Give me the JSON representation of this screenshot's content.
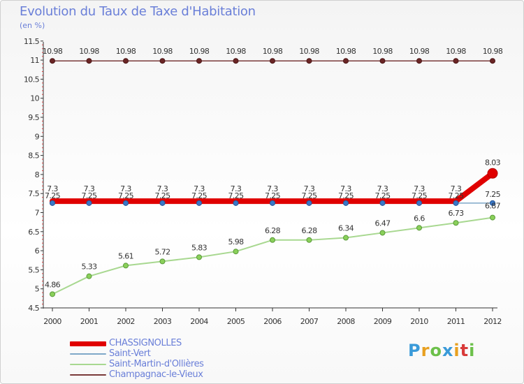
{
  "header": {
    "title": "Evolution du Taux de Taxe d'Habitation",
    "subtitle": "(en %)"
  },
  "logo": {
    "text": "Proxiti"
  },
  "chart_data": {
    "type": "line",
    "xlabel": "",
    "ylabel": "",
    "ylim": [
      4.5,
      11.5
    ],
    "grid": false,
    "legend_position": "bottom-left",
    "x": [
      "2000",
      "2001",
      "2002",
      "2003",
      "2004",
      "2005",
      "2006",
      "2007",
      "2008",
      "2009",
      "2010",
      "2011",
      "2012"
    ],
    "y_ticks": [
      "4.5",
      "5",
      "5.5",
      "6",
      "6.5",
      "7",
      "7.5",
      "8",
      "8.5",
      "9",
      "9.5",
      "10",
      "10.5",
      "11",
      "11.5"
    ],
    "series": [
      {
        "name": "Champagnac-le-Vieux",
        "color": "#7a3a3a",
        "values": [
          10.98,
          10.98,
          10.98,
          10.98,
          10.98,
          10.98,
          10.98,
          10.98,
          10.98,
          10.98,
          10.98,
          10.98,
          10.98
        ],
        "labels": [
          "10.98",
          "10.98",
          "10.98",
          "10.98",
          "10.98",
          "10.98",
          "10.98",
          "10.98",
          "10.98",
          "10.98",
          "10.98",
          "10.98",
          "10.98"
        ]
      },
      {
        "name": "Saint-Martin-d'Ollières",
        "color": "#a8d890",
        "values": [
          4.86,
          5.33,
          5.61,
          5.72,
          5.83,
          5.98,
          6.28,
          6.28,
          6.34,
          6.47,
          6.6,
          6.73,
          6.87
        ],
        "labels": [
          "4.86",
          "5.33",
          "5.61",
          "5.72",
          "5.83",
          "5.98",
          "6.28",
          "6.28",
          "6.34",
          "6.47",
          "6.6",
          "6.73",
          "6.87"
        ]
      },
      {
        "name": "Saint-Vert",
        "color": "#7fa8c8",
        "values": [
          7.25,
          7.25,
          7.25,
          7.25,
          7.25,
          7.25,
          7.25,
          7.25,
          7.25,
          7.25,
          7.25,
          7.25,
          7.25
        ],
        "labels": [
          "7.25",
          "7.25",
          "7.25",
          "7.25",
          "7.25",
          "7.25",
          "7.25",
          "7.25",
          "7.25",
          "7.25",
          "7.25",
          "7.25",
          "7.25"
        ]
      },
      {
        "name": "CHASSIGNOLLES",
        "color": "#e00000",
        "values": [
          7.3,
          7.3,
          7.3,
          7.3,
          7.3,
          7.3,
          7.3,
          7.3,
          7.3,
          7.3,
          7.3,
          7.3,
          8.03
        ],
        "labels": [
          "7.3",
          "7.3",
          "7.3",
          "7.3",
          "7.3",
          "7.3",
          "7.3",
          "7.3",
          "7.3",
          "7.3",
          "7.3",
          "7.3",
          "8.03"
        ]
      }
    ]
  }
}
